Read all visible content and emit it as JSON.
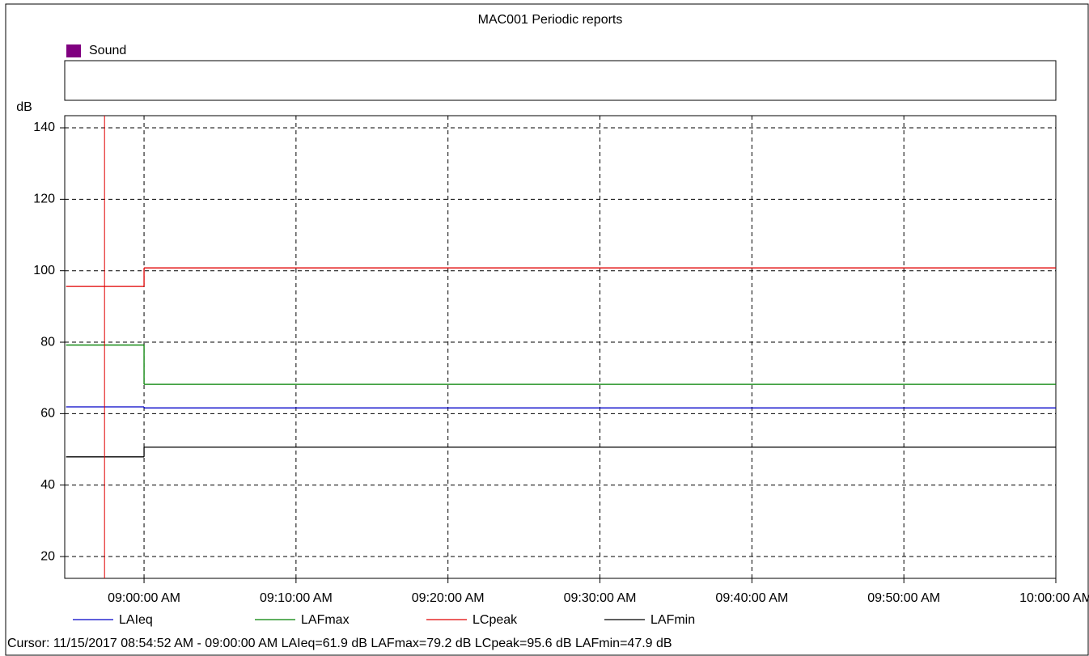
{
  "chart_data": {
    "type": "step",
    "title": "MAC001 Periodic reports",
    "band_legend": {
      "name": "Sound",
      "color": "#800080"
    },
    "ylabel": "dB",
    "x": [
      534.87,
      540
    ],
    "xlim": [
      534.78,
      600
    ],
    "xticks": [
      {
        "value": 540,
        "label": "09:00:00 AM"
      },
      {
        "value": 550,
        "label": "09:10:00 AM"
      },
      {
        "value": 560,
        "label": "09:20:00 AM"
      },
      {
        "value": 570,
        "label": "09:30:00 AM"
      },
      {
        "value": 580,
        "label": "09:40:00 AM"
      },
      {
        "value": 590,
        "label": "09:50:00 AM"
      },
      {
        "value": 600,
        "label": "10:00:00 AM"
      }
    ],
    "ylim": [
      13.9,
      143.4
    ],
    "yticks": [
      20,
      40,
      60,
      80,
      100,
      120,
      140
    ],
    "grid": true,
    "cursor_x": 537.4,
    "cursor_color": "#e00000",
    "series": [
      {
        "name": "LAIeq",
        "color": "#0000c8",
        "values": [
          61.9,
          61.6
        ]
      },
      {
        "name": "LAFmax",
        "color": "#008000",
        "values": [
          79.2,
          68.2
        ]
      },
      {
        "name": "LCpeak",
        "color": "#e00000",
        "values": [
          95.6,
          100.8
        ]
      },
      {
        "name": "LAFmin",
        "color": "#000000",
        "values": [
          47.9,
          50.6
        ]
      }
    ],
    "cursor_text": "Cursor: 11/15/2017 08:54:52 AM - 09:00:00 AM  LAIeq=61.9 dB  LAFmax=79.2 dB  LCpeak=95.6 dB  LAFmin=47.9 dB"
  }
}
